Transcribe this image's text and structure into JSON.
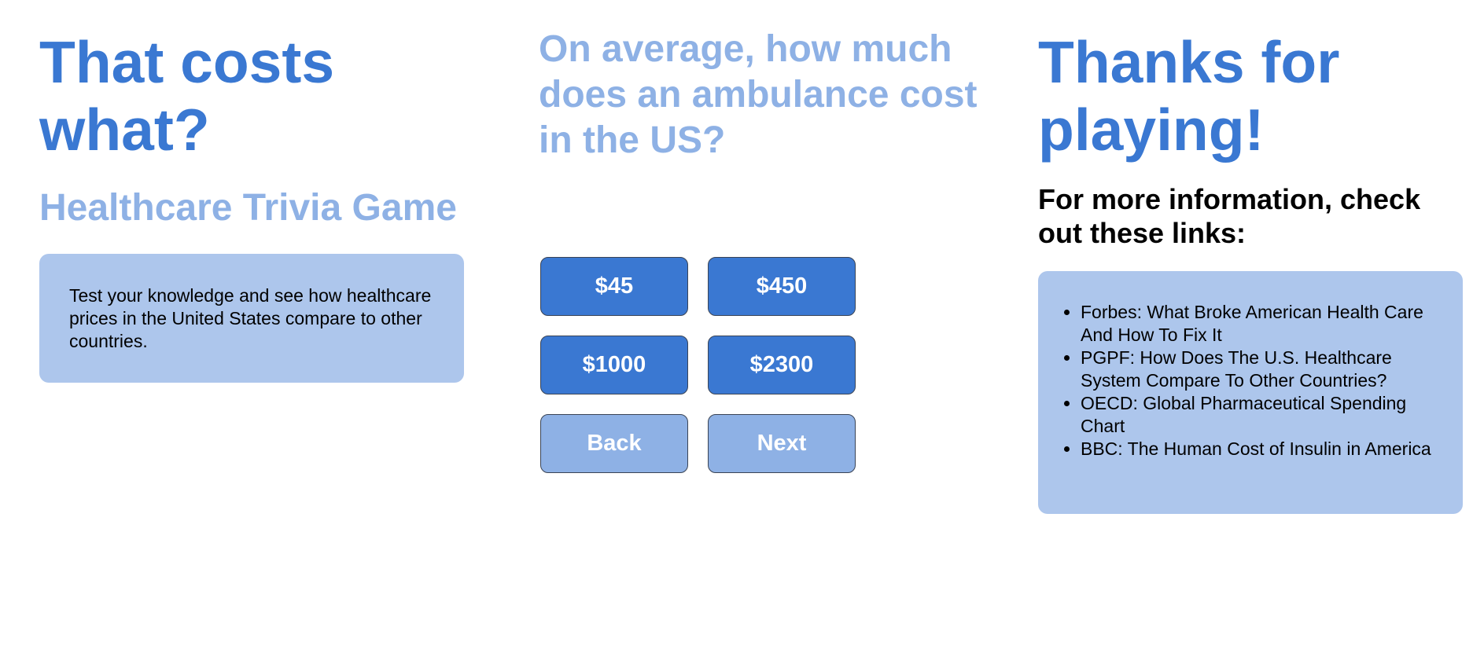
{
  "intro": {
    "title": "That costs what?",
    "subtitle": "Healthcare Trivia Game",
    "description": "Test your knowledge and see how healthcare prices in the United States compare to other countries."
  },
  "quiz": {
    "question": "On average, how much does an ambulance cost in the US?",
    "answers": [
      "$45",
      "$450",
      "$1000",
      "$2300"
    ],
    "back_label": "Back",
    "next_label": "Next"
  },
  "outro": {
    "title": "Thanks for playing!",
    "more_info": "For more information, check out these links:",
    "links": [
      "Forbes: What Broke American Health Care And How To Fix It",
      "PGPF: How Does The U.S. Healthcare System Compare To Other Countries?",
      "OECD: Global Pharmaceutical Spending Chart",
      "BBC: The Human Cost of Insulin in America"
    ]
  },
  "colors": {
    "primary_blue": "#3a78d2",
    "light_blue": "#8eb1e5",
    "panel_blue": "#adc6ec"
  }
}
